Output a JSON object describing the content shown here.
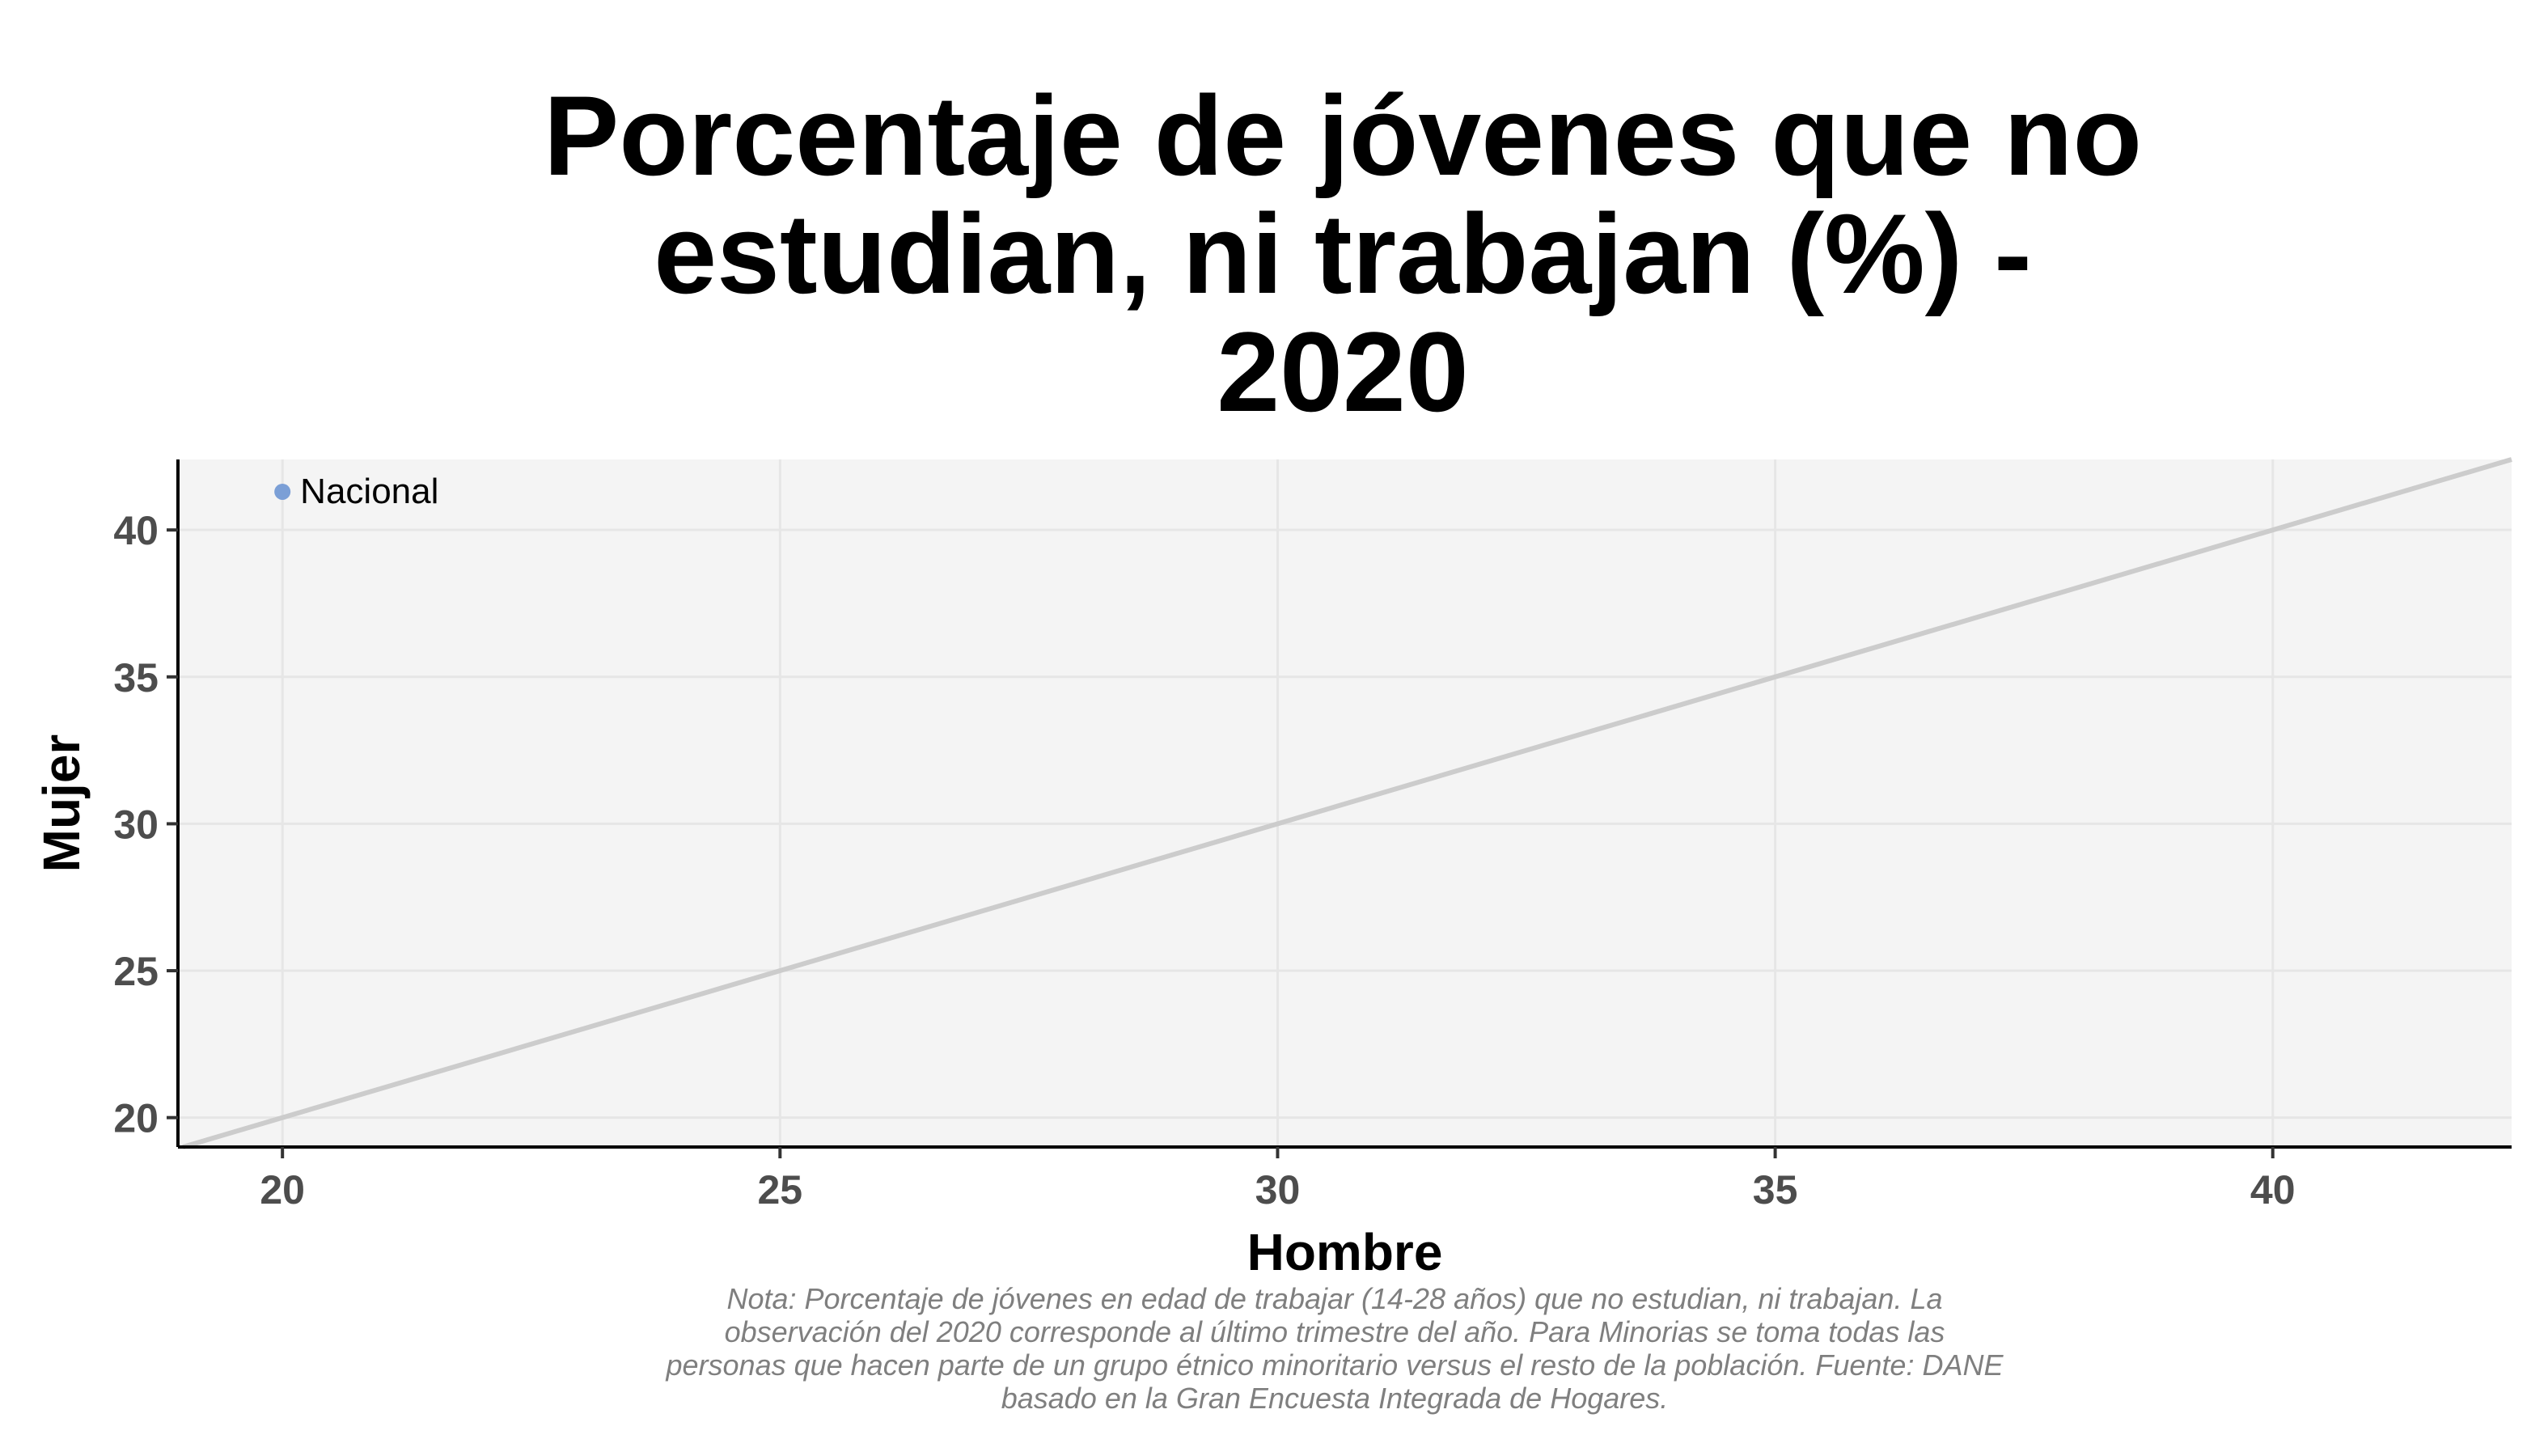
{
  "chart_data": {
    "type": "scatter",
    "title": "Porcentaje de jóvenes que no\nestudian, ni trabajan (%) -\n2020",
    "xlabel": "Hombre",
    "ylabel": "Mujer",
    "xlim": [
      18.95,
      42.4
    ],
    "ylim": [
      19.0,
      42.4
    ],
    "xticks": [
      20,
      25,
      30,
      35,
      40
    ],
    "yticks": [
      20,
      25,
      30,
      35,
      40
    ],
    "grid": true,
    "reference_line": {
      "type": "identity",
      "color": "#cccccc"
    },
    "points": [
      {
        "label": "Nacional",
        "x": 20.0,
        "y": 41.3,
        "color": "#7b9fd6"
      }
    ],
    "note": "Nota: Porcentaje de jóvenes en edad de trabajar (14-28 años) que no estudian, ni trabajan. La observación del 2020 corresponde al último trimestre del año. Para Minorias se toma todas las personas que hacen parte de un grupo étnico minoritario versus el resto de la población. Fuente: DANE basado en la Gran Encuesta Integrada de Hogares."
  },
  "colors": {
    "panel_background": "#f4f4f4",
    "grid": "#e6e6e6",
    "axis_line": "#000000",
    "tick_text": "#4d4d4d",
    "note_text": "#7f7f7f"
  }
}
